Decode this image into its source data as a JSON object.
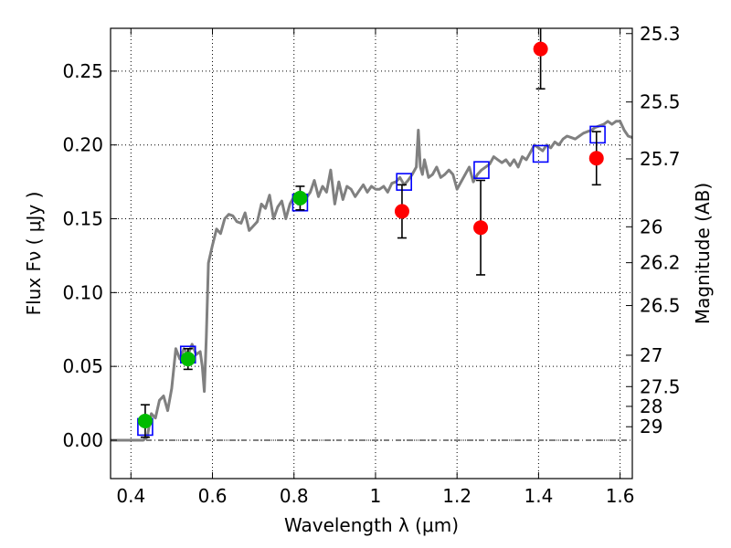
{
  "chart_data": {
    "type": "scatter",
    "xlabel": "Wavelength  λ (μm)",
    "ylabel": "Flux  Fν  ( μJy )",
    "y2label": "Magnitude (AB)",
    "xlim": [
      0.35,
      1.63
    ],
    "ylim": [
      -0.026,
      0.279
    ],
    "xticks": [
      0.4,
      0.6,
      0.8,
      1.0,
      1.2,
      1.4,
      1.6
    ],
    "xtick_labels": [
      "0.4",
      "0.6",
      "0.8",
      "1",
      "1.2",
      "1.4",
      "1.6"
    ],
    "yticks": [
      0.0,
      0.05,
      0.1,
      0.15,
      0.2,
      0.25
    ],
    "ytick_labels": [
      "0.00",
      "0.05",
      "0.10",
      "0.15",
      "0.20",
      "0.25"
    ],
    "magnitude_ticks": [
      "25.3",
      "25.5",
      "25.7",
      "26",
      "26.2",
      "26.5",
      "27",
      "27.5",
      "28",
      "29"
    ],
    "grid": true,
    "model_spectrum": {
      "color": "#808080",
      "x": [
        0.35,
        0.4,
        0.42,
        0.43,
        0.44,
        0.45,
        0.46,
        0.47,
        0.48,
        0.49,
        0.5,
        0.51,
        0.52,
        0.53,
        0.54,
        0.55,
        0.56,
        0.57,
        0.575,
        0.58,
        0.585,
        0.59,
        0.6,
        0.61,
        0.62,
        0.63,
        0.64,
        0.65,
        0.66,
        0.67,
        0.68,
        0.69,
        0.7,
        0.71,
        0.72,
        0.73,
        0.74,
        0.75,
        0.76,
        0.77,
        0.78,
        0.79,
        0.8,
        0.81,
        0.82,
        0.83,
        0.84,
        0.85,
        0.86,
        0.87,
        0.88,
        0.89,
        0.9,
        0.91,
        0.92,
        0.93,
        0.94,
        0.95,
        0.96,
        0.97,
        0.98,
        0.99,
        1.0,
        1.01,
        1.02,
        1.03,
        1.04,
        1.05,
        1.06,
        1.07,
        1.08,
        1.09,
        1.1,
        1.105,
        1.11,
        1.115,
        1.12,
        1.13,
        1.14,
        1.15,
        1.16,
        1.17,
        1.18,
        1.19,
        1.2,
        1.21,
        1.22,
        1.23,
        1.24,
        1.25,
        1.26,
        1.27,
        1.28,
        1.29,
        1.3,
        1.31,
        1.32,
        1.33,
        1.34,
        1.35,
        1.36,
        1.37,
        1.38,
        1.39,
        1.4,
        1.41,
        1.42,
        1.43,
        1.44,
        1.45,
        1.46,
        1.47,
        1.48,
        1.49,
        1.5,
        1.51,
        1.52,
        1.53,
        1.54,
        1.55,
        1.56,
        1.57,
        1.58,
        1.59,
        1.6,
        1.61,
        1.62,
        1.63
      ],
      "y": [
        0.0,
        0.0,
        0.0,
        0.0,
        0.002,
        0.018,
        0.015,
        0.027,
        0.03,
        0.02,
        0.035,
        0.062,
        0.055,
        0.062,
        0.058,
        0.065,
        0.058,
        0.06,
        0.05,
        0.033,
        0.07,
        0.12,
        0.132,
        0.143,
        0.14,
        0.15,
        0.153,
        0.152,
        0.148,
        0.147,
        0.154,
        0.142,
        0.145,
        0.148,
        0.16,
        0.157,
        0.166,
        0.15,
        0.158,
        0.162,
        0.15,
        0.16,
        0.165,
        0.16,
        0.162,
        0.164,
        0.168,
        0.176,
        0.165,
        0.172,
        0.168,
        0.183,
        0.16,
        0.175,
        0.163,
        0.172,
        0.17,
        0.165,
        0.169,
        0.173,
        0.168,
        0.172,
        0.17,
        0.17,
        0.172,
        0.168,
        0.174,
        0.175,
        0.178,
        0.173,
        0.176,
        0.18,
        0.185,
        0.21,
        0.185,
        0.18,
        0.19,
        0.178,
        0.18,
        0.185,
        0.178,
        0.18,
        0.183,
        0.18,
        0.17,
        0.175,
        0.18,
        0.185,
        0.175,
        0.18,
        0.183,
        0.185,
        0.187,
        0.192,
        0.19,
        0.188,
        0.19,
        0.186,
        0.19,
        0.185,
        0.192,
        0.19,
        0.195,
        0.2,
        0.198,
        0.196,
        0.2,
        0.198,
        0.202,
        0.2,
        0.204,
        0.206,
        0.205,
        0.204,
        0.206,
        0.208,
        0.209,
        0.21,
        0.212,
        0.213,
        0.214,
        0.216,
        0.214,
        0.216,
        0.216,
        0.21,
        0.206,
        0.205
      ]
    },
    "series": [
      {
        "marker": "square",
        "color": "#0000ff",
        "x": [
          0.435,
          0.54,
          0.815,
          1.07,
          1.26,
          1.405,
          1.545
        ],
        "y": [
          0.009,
          0.058,
          0.161,
          0.175,
          0.183,
          0.194,
          0.207
        ]
      },
      {
        "marker": "circle",
        "color": "#00bb00",
        "x": [
          0.435,
          0.54,
          0.815
        ],
        "y": [
          0.013,
          0.055,
          0.164
        ],
        "yerr": [
          0.011,
          0.007,
          0.008
        ]
      },
      {
        "marker": "circle",
        "color": "#ff0000",
        "x": [
          1.065,
          1.258,
          1.405,
          1.542
        ],
        "y": [
          0.155,
          0.144,
          0.265,
          0.191
        ],
        "yerr": [
          0.018,
          0.032,
          0.027,
          0.018
        ]
      }
    ]
  }
}
